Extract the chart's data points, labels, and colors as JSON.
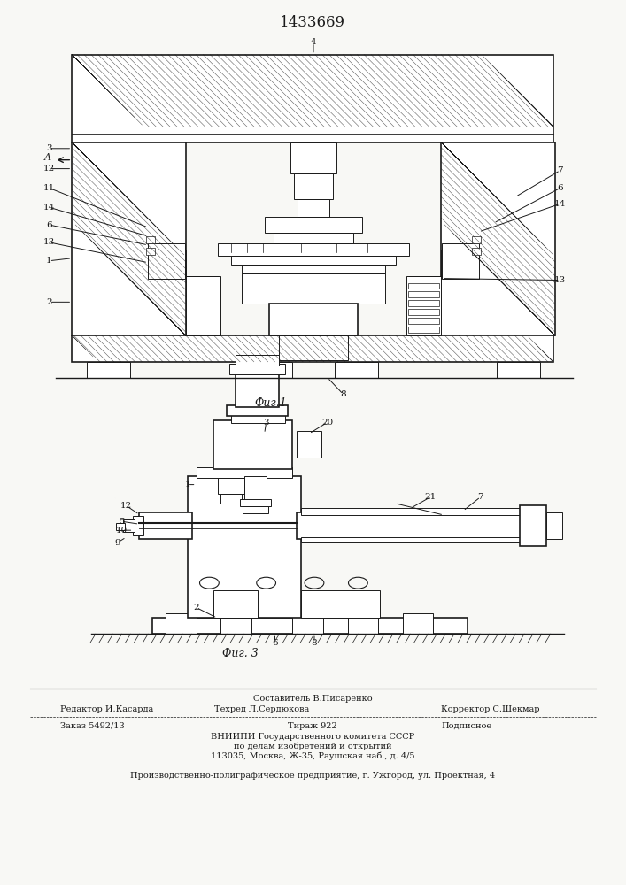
{
  "patent_number": "1433669",
  "background_color": "#f8f8f5",
  "text_color": "#1a1a1a",
  "fig1_caption": "Фиг.1",
  "fig3_caption": "Фиг. 3",
  "footer_line1_center_top": "Составитель В.Писаренко",
  "footer_line1_left": "Редактор И.Касарда",
  "footer_line1_center": "Техред Л.Сердюкова",
  "footer_line1_right": "Корректор С.Шекмар",
  "footer_line2_left": "Заказ 5492/13",
  "footer_line2_center": "Тираж 922",
  "footer_line2_right": "Подписное",
  "footer_vniipi1": "ВНИИПИ Государственного комитета СССР",
  "footer_vniipi2": "по делам изобретений и открытий",
  "footer_vniipi3": "113035, Москва, Ж-35, Раушская наб., д. 4/5",
  "footer_enterprise": "Производственно-полиграфическое предприятие, г. Ужгород, ул. Проектная, 4"
}
